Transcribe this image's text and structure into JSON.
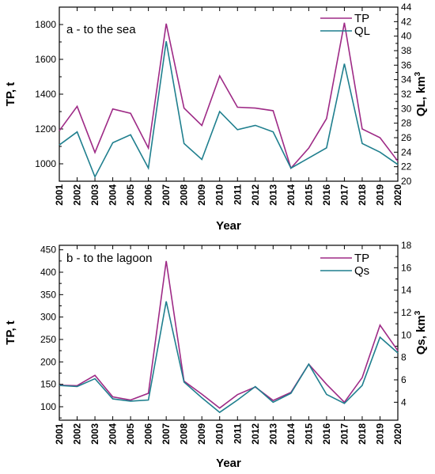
{
  "colors": {
    "tp": "#9e2a86",
    "secondary": "#1f7f8e"
  },
  "chart_data": [
    {
      "type": "line",
      "title": "a - to the sea",
      "xlabel": "Year",
      "ylabel": "TP, t",
      "y2label": "QL, km",
      "y2label_sup": "3",
      "x": [
        2001,
        2002,
        2003,
        2004,
        2005,
        2006,
        2007,
        2008,
        2009,
        2010,
        2011,
        2012,
        2013,
        2014,
        2015,
        2016,
        2017,
        2018,
        2019,
        2020
      ],
      "ylim": [
        900,
        1900
      ],
      "yticks": [
        1000,
        1200,
        1400,
        1600,
        1800
      ],
      "y2lim": [
        20,
        44
      ],
      "y2ticks": [
        20,
        22,
        24,
        26,
        28,
        30,
        32,
        34,
        36,
        38,
        40,
        42,
        44
      ],
      "legend_position": "top-right",
      "grid": false,
      "series": [
        {
          "name": "TP",
          "axis": "left",
          "color": "#9e2a86",
          "values": [
            1190,
            1330,
            1065,
            1315,
            1290,
            1090,
            1805,
            1320,
            1220,
            1505,
            1325,
            1320,
            1305,
            975,
            1090,
            1260,
            1810,
            1200,
            1150,
            1015
          ]
        },
        {
          "name": "QL",
          "axis": "right",
          "color": "#1f7f8e",
          "values": [
            25.0,
            26.8,
            20.6,
            25.3,
            26.4,
            21.8,
            39.3,
            25.2,
            23.0,
            29.6,
            27.1,
            27.7,
            26.8,
            21.8,
            23.2,
            24.6,
            36.2,
            25.2,
            24.0,
            22.3
          ]
        }
      ]
    },
    {
      "type": "line",
      "title": "b - to the lagoon",
      "xlabel": "Year",
      "ylabel": "TP, t",
      "y2label": "Qs, km",
      "y2label_sup": "3",
      "x": [
        2001,
        2002,
        2003,
        2004,
        2005,
        2006,
        2007,
        2008,
        2009,
        2010,
        2011,
        2012,
        2013,
        2014,
        2015,
        2016,
        2017,
        2018,
        2019,
        2020
      ],
      "ylim": [
        70,
        460
      ],
      "yticks": [
        100,
        150,
        200,
        250,
        300,
        350,
        400,
        450
      ],
      "y2lim": [
        2.4,
        18
      ],
      "y2ticks": [
        4,
        6,
        8,
        10,
        12,
        14,
        16,
        18
      ],
      "legend_position": "top-right",
      "grid": false,
      "series": [
        {
          "name": "TP",
          "axis": "left",
          "color": "#9e2a86",
          "values": [
            148,
            147,
            170,
            122,
            115,
            130,
            425,
            157,
            128,
            97,
            127,
            144,
            114,
            132,
            195,
            150,
            110,
            165,
            282,
            225
          ]
        },
        {
          "name": "Qs",
          "axis": "right",
          "color": "#1f7f8e",
          "values": [
            5.5,
            5.4,
            6.1,
            4.3,
            4.1,
            4.2,
            13.0,
            5.8,
            4.4,
            3.1,
            4.2,
            5.4,
            4.0,
            4.8,
            7.4,
            4.7,
            3.9,
            5.5,
            9.8,
            8.4
          ]
        }
      ]
    }
  ]
}
